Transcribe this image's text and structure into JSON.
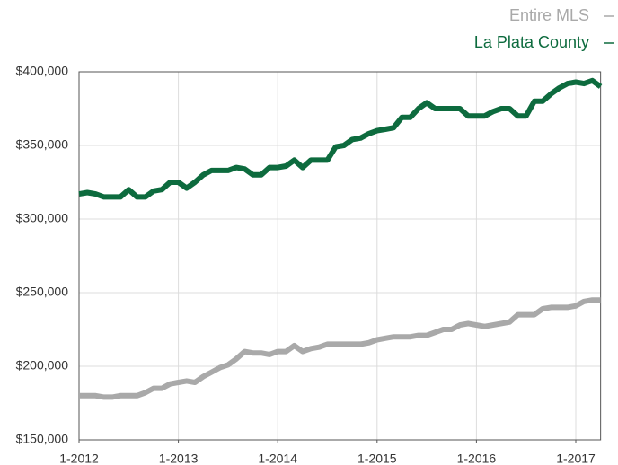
{
  "chart_data": {
    "type": "line",
    "categories": [
      "1-2012",
      null,
      null,
      null,
      null,
      null,
      null,
      null,
      null,
      null,
      null,
      null,
      "1-2013",
      null,
      null,
      null,
      null,
      null,
      null,
      null,
      null,
      null,
      null,
      null,
      "1-2014",
      null,
      null,
      null,
      null,
      null,
      null,
      null,
      null,
      null,
      null,
      null,
      "1-2015",
      null,
      null,
      null,
      null,
      null,
      null,
      null,
      null,
      null,
      null,
      null,
      "1-2016",
      null,
      null,
      null,
      null,
      null,
      null,
      null,
      null,
      null,
      null,
      null,
      "1-2017",
      null,
      null,
      null
    ],
    "series": [
      {
        "name": "Entire MLS",
        "color": "#a9a9a9",
        "values": [
          180000,
          180000,
          180000,
          179000,
          179000,
          180000,
          180000,
          180000,
          182000,
          185000,
          185000,
          188000,
          189000,
          190000,
          189000,
          193000,
          196000,
          199000,
          201000,
          205000,
          210000,
          209000,
          209000,
          208000,
          210000,
          210000,
          214000,
          210000,
          212000,
          213000,
          215000,
          215000,
          215000,
          215000,
          215000,
          216000,
          218000,
          219000,
          220000,
          220000,
          220000,
          221000,
          221000,
          223000,
          225000,
          225000,
          228000,
          229000,
          228000,
          227000,
          228000,
          229000,
          230000,
          235000,
          235000,
          235000,
          239000,
          240000,
          240000,
          240000,
          241000,
          244000,
          245000,
          245000
        ]
      },
      {
        "name": "La Plata County",
        "color": "#0d6b3e",
        "values": [
          317000,
          318000,
          317000,
          315000,
          315000,
          315000,
          320000,
          315000,
          315000,
          319000,
          320000,
          325000,
          325000,
          321000,
          325000,
          330000,
          333000,
          333000,
          333000,
          335000,
          334000,
          330000,
          330000,
          335000,
          335000,
          336000,
          340000,
          335000,
          340000,
          340000,
          340000,
          349000,
          350000,
          354000,
          355000,
          358000,
          360000,
          361000,
          362000,
          369000,
          369000,
          375000,
          379000,
          375000,
          375000,
          375000,
          375000,
          370000,
          370000,
          370000,
          373000,
          375000,
          375000,
          370000,
          370000,
          380000,
          380000,
          385000,
          389000,
          392000,
          393000,
          392000,
          394000,
          390000
        ]
      }
    ],
    "ylim": [
      150000,
      400000
    ],
    "yticks": [
      {
        "value": 150000,
        "label": "$150,000"
      },
      {
        "value": 200000,
        "label": "$200,000"
      },
      {
        "value": 250000,
        "label": "$250,000"
      },
      {
        "value": 300000,
        "label": "$300,000"
      },
      {
        "value": 350000,
        "label": "$350,000"
      },
      {
        "value": 400000,
        "label": "$400,000"
      }
    ],
    "grid": true,
    "legend": "top-right"
  }
}
